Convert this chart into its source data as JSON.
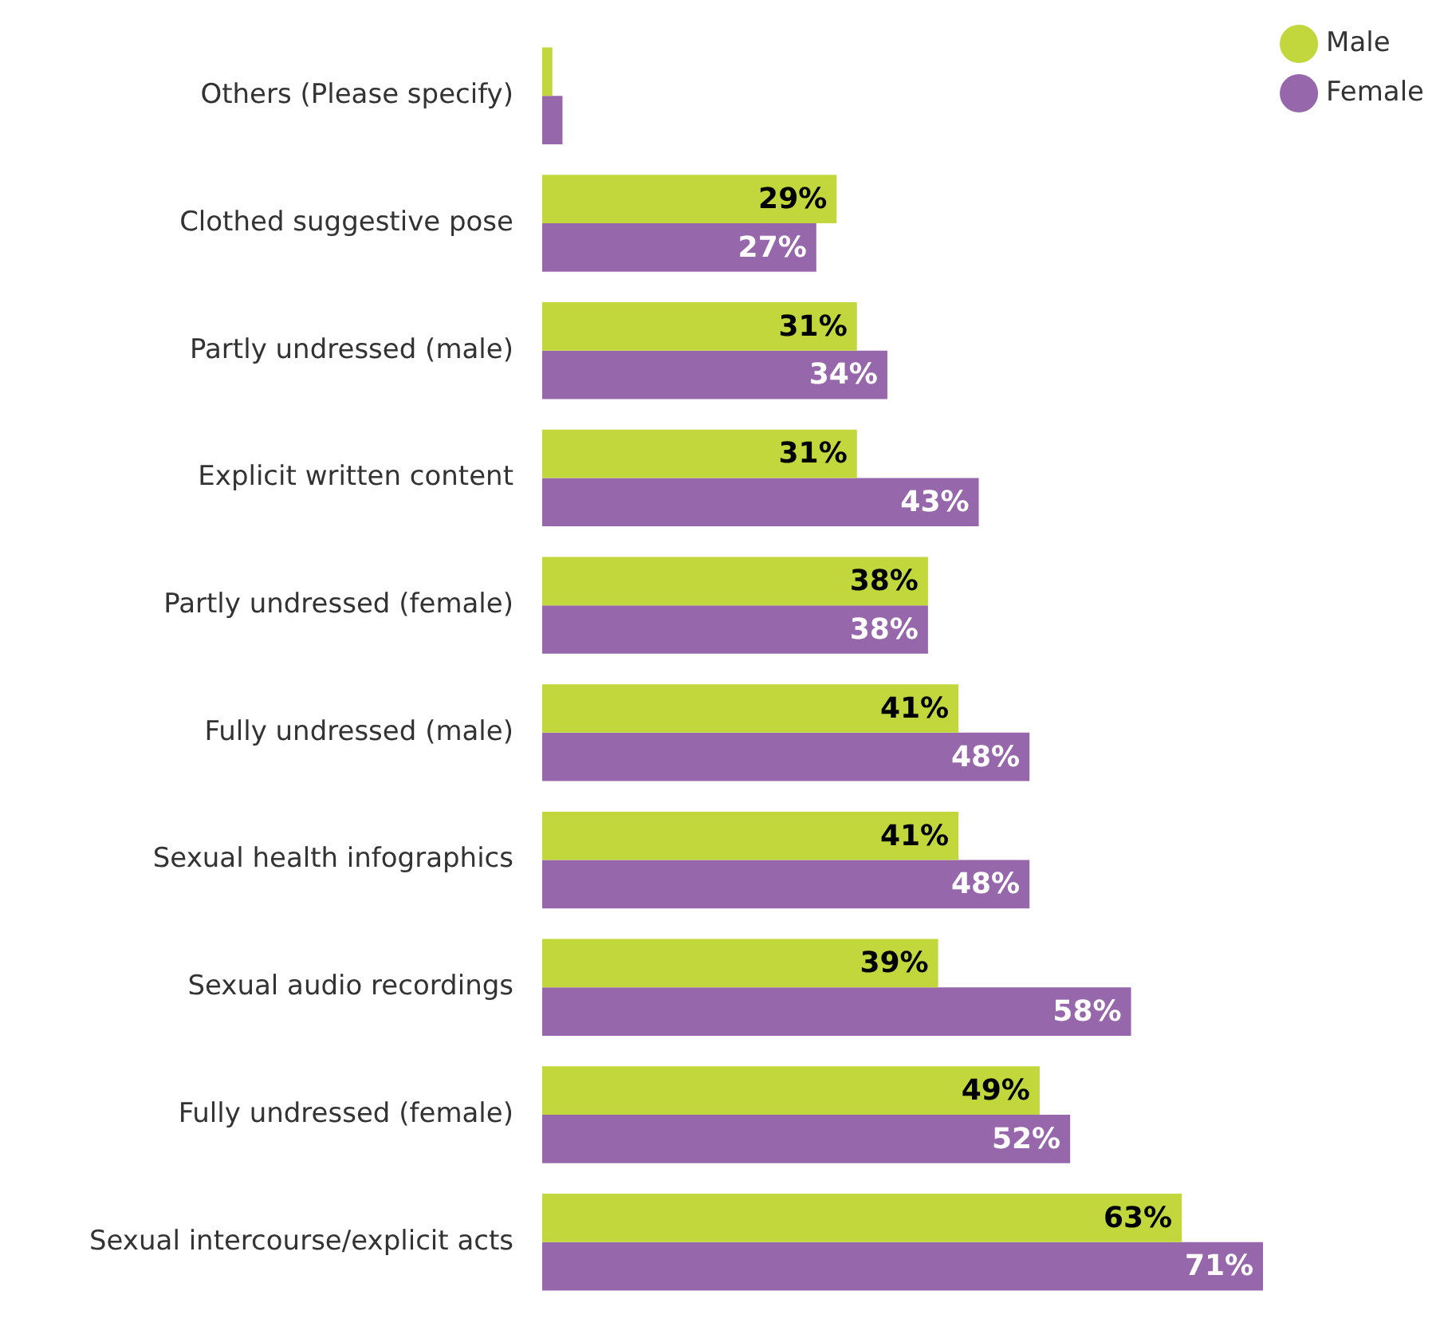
{
  "chart_data": {
    "type": "bar",
    "orientation": "horizontal",
    "categories": [
      "Others (Please specify)",
      "Clothed suggestive pose",
      "Partly undressed (male)",
      "Explicit written content",
      "Partly undressed (female)",
      "Fully undressed (male)",
      "Sexual health infographics",
      "Sexual audio recordings",
      "Fully undressed (female)",
      "Sexual intercourse/explicit acts"
    ],
    "series": [
      {
        "name": "Male",
        "color": "#c1d73b",
        "values": [
          1,
          29,
          31,
          31,
          38,
          41,
          41,
          39,
          49,
          63
        ],
        "value_labels": [
          null,
          "29%",
          "31%",
          "31%",
          "38%",
          "41%",
          "41%",
          "39%",
          "49%",
          "63%"
        ]
      },
      {
        "name": "Female",
        "color": "#9767ac",
        "values": [
          2,
          27,
          34,
          43,
          38,
          48,
          48,
          58,
          52,
          71
        ],
        "value_labels": [
          null,
          "27%",
          "34%",
          "43%",
          "38%",
          "48%",
          "48%",
          "58%",
          "52%",
          "71%"
        ]
      }
    ],
    "legend": "top right",
    "tick_labels": "y"
  }
}
